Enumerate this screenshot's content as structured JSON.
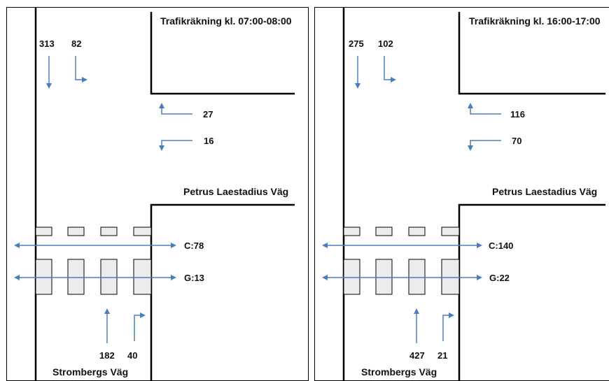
{
  "colors": {
    "arrow": "#4a7ebb",
    "road": "#000000",
    "crossing_fill": "#ececec"
  },
  "panels": [
    {
      "title": "Trafikräkning kl. 07:00-08:00",
      "road_label": "Petrus Laestadius Väg",
      "street_label": "Strombergs Väg",
      "north": {
        "straight": "313",
        "left_turn": "82"
      },
      "east": {
        "right_turn": "27",
        "left_turn": "16"
      },
      "south": {
        "straight": "182",
        "right_turn": "40"
      },
      "crossing_upper": "C:78",
      "crossing_lower": "G:13"
    },
    {
      "title": "Trafikräkning kl. 16:00-17:00",
      "road_label": "Petrus Laestadius Väg",
      "street_label": "Strombergs Väg",
      "north": {
        "straight": "275",
        "left_turn": "102"
      },
      "east": {
        "right_turn": "116",
        "left_turn": "70"
      },
      "south": {
        "straight": "427",
        "right_turn": "21"
      },
      "crossing_upper": "C:140",
      "crossing_lower": "G:22"
    }
  ]
}
